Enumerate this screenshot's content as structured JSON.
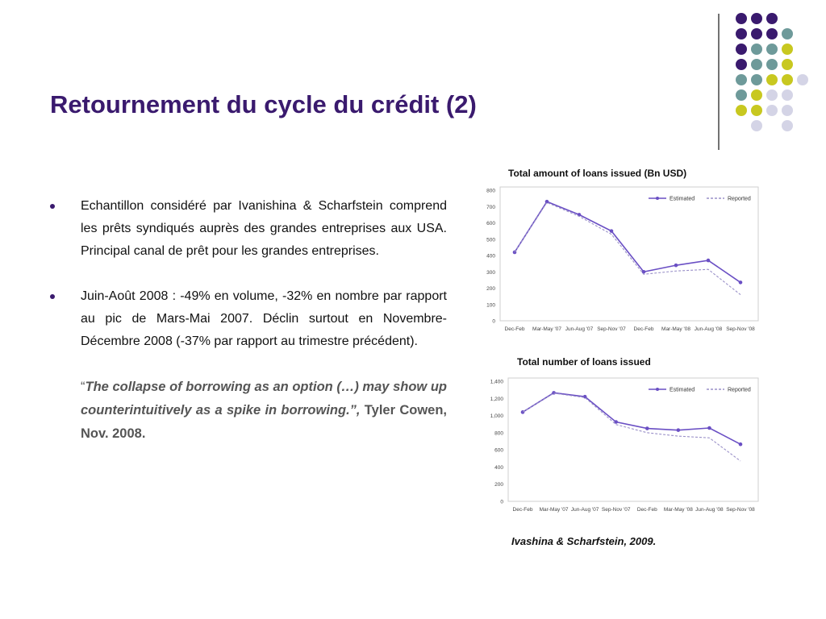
{
  "slide": {
    "title": "Retournement du cycle du crédit (2)",
    "bullets": [
      "Echantillon considéré par Ivanishina & Scharfstein comprend les prêts syndiqués auprès des grandes entreprises aux USA. Principal canal de prêt pour les grandes entreprises.",
      "Juin-Août 2008 : -49% en volume, -32% en nombre par rapport au pic de Mars-Mai 2007. Déclin surtout en Novembre-Décembre 2008 (-37% par rapport au trimestre précédent)."
    ],
    "quote": {
      "open": "“",
      "text": "The collapse of borrowing as an option (…) may show up counterintuitively as a spike in borrowing.”,",
      "author": " Tyler Cowen, Nov. 2008."
    },
    "caption": "Ivashina & Scharfstein, 2009.",
    "colors": {
      "accent": "#3a1a6e",
      "estimated": "#6a4fc4",
      "reported": "#9a90c8"
    }
  },
  "chart_data": [
    {
      "type": "line",
      "title": "Total amount of loans issued (Bn USD)",
      "categories": [
        "Dec-Feb",
        "Mar-May '07",
        "Jun-Aug '07",
        "Sep-Nov '07",
        "Dec-Feb",
        "Mar-May '08",
        "Jun-Aug '08",
        "Sep-Nov '08"
      ],
      "series": [
        {
          "name": "Estimated",
          "values": [
            420,
            730,
            650,
            550,
            300,
            340,
            370,
            235
          ]
        },
        {
          "name": "Reported",
          "values": [
            420,
            725,
            640,
            530,
            285,
            305,
            315,
            160
          ]
        }
      ],
      "yticks": [
        "800",
        "700",
        "600",
        "500",
        "400",
        "300",
        "200",
        "100",
        "0"
      ],
      "ylim": [
        0,
        800
      ],
      "legend": "top-right",
      "grid": false
    },
    {
      "type": "line",
      "title": "Total number of loans issued",
      "categories": [
        "Dec-Feb",
        "Mar-May '07",
        "Jun-Aug '07",
        "Sep-Nov '07",
        "Dec-Feb",
        "Mar-May '08",
        "Jun-Aug '08",
        "Sep-Nov '08"
      ],
      "series": [
        {
          "name": "Estimated",
          "values": [
            1040,
            1265,
            1220,
            925,
            850,
            830,
            855,
            665
          ]
        },
        {
          "name": "Reported",
          "values": [
            1040,
            1260,
            1210,
            895,
            800,
            760,
            740,
            470
          ]
        }
      ],
      "yticks": [
        "1,400",
        "1,200",
        "1,000",
        "800",
        "600",
        "400",
        "200",
        "0"
      ],
      "ylim": [
        0,
        1400
      ],
      "legend": "top-right",
      "grid": false
    }
  ]
}
